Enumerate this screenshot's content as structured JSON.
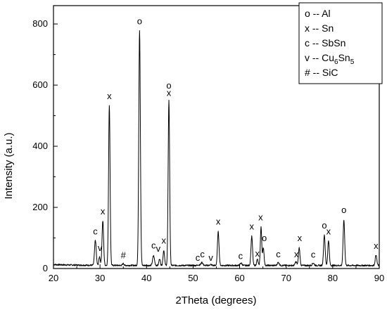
{
  "chart_data": {
    "type": "line",
    "xlabel": "2Theta (degrees)",
    "ylabel": "Intensity (a.u.)",
    "xlim": [
      20,
      90
    ],
    "ylim": [
      0,
      860
    ],
    "x_ticks": [
      20,
      30,
      40,
      50,
      60,
      70,
      80,
      90
    ],
    "y_ticks": [
      0,
      200,
      400,
      600,
      800
    ],
    "x_tick_labels": [
      "20",
      "30",
      "40",
      "50",
      "60",
      "70",
      "80",
      "90"
    ],
    "y_tick_labels": [
      "0",
      "200",
      "400",
      "600",
      "800"
    ],
    "grid": false,
    "legend_position": "top-right",
    "legend": [
      {
        "symbol": "o",
        "sep": " -- ",
        "name": "Al",
        "sub1": "",
        "mid": "",
        "sub2": ""
      },
      {
        "symbol": "x",
        "sep": " -- ",
        "name": "Sn",
        "sub1": "",
        "mid": "",
        "sub2": ""
      },
      {
        "symbol": "c",
        "sep": " -- ",
        "name": "SbSn",
        "sub1": "",
        "mid": "",
        "sub2": ""
      },
      {
        "symbol": "v",
        "sep": " -- ",
        "name": "Cu",
        "sub1": "6",
        "mid": "Sn",
        "sub2": "5"
      },
      {
        "symbol": "#",
        "sep": " -- ",
        "name": "SiC",
        "sub1": "",
        "mid": "",
        "sub2": ""
      }
    ],
    "baseline": 10,
    "peaks": [
      {
        "x": 29.0,
        "y": 92,
        "w": 0.18
      },
      {
        "x": 29.9,
        "y": 38,
        "w": 0.15
      },
      {
        "x": 30.6,
        "y": 155,
        "w": 0.17
      },
      {
        "x": 32.0,
        "y": 535,
        "w": 0.16
      },
      {
        "x": 35.0,
        "y": 16,
        "w": 0.15
      },
      {
        "x": 38.5,
        "y": 780,
        "w": 0.17
      },
      {
        "x": 41.5,
        "y": 42,
        "w": 0.2
      },
      {
        "x": 42.8,
        "y": 32,
        "w": 0.15
      },
      {
        "x": 43.7,
        "y": 60,
        "w": 0.16
      },
      {
        "x": 44.8,
        "y": 550,
        "w": 0.16
      },
      {
        "x": 51.2,
        "y": 12,
        "w": 0.2
      },
      {
        "x": 51.9,
        "y": 20,
        "w": 0.2
      },
      {
        "x": 53.8,
        "y": 13,
        "w": 0.2
      },
      {
        "x": 55.4,
        "y": 120,
        "w": 0.17
      },
      {
        "x": 60.3,
        "y": 18,
        "w": 0.2
      },
      {
        "x": 62.6,
        "y": 105,
        "w": 0.17
      },
      {
        "x": 63.8,
        "y": 30,
        "w": 0.15
      },
      {
        "x": 64.6,
        "y": 135,
        "w": 0.15
      },
      {
        "x": 65.1,
        "y": 68,
        "w": 0.15
      },
      {
        "x": 68.3,
        "y": 20,
        "w": 0.2
      },
      {
        "x": 72.1,
        "y": 22,
        "w": 0.18
      },
      {
        "x": 72.8,
        "y": 68,
        "w": 0.16
      },
      {
        "x": 75.8,
        "y": 18,
        "w": 0.2
      },
      {
        "x": 78.2,
        "y": 110,
        "w": 0.17
      },
      {
        "x": 79.1,
        "y": 92,
        "w": 0.16
      },
      {
        "x": 82.4,
        "y": 158,
        "w": 0.17
      },
      {
        "x": 89.3,
        "y": 45,
        "w": 0.17
      }
    ],
    "annotations": [
      {
        "text": "c",
        "x": 29.0,
        "y": 102
      },
      {
        "text": "v",
        "x": 30.0,
        "y": 48
      },
      {
        "text": "x",
        "x": 30.6,
        "y": 168
      },
      {
        "text": "x",
        "x": 32.0,
        "y": 545
      },
      {
        "text": "#",
        "x": 35.0,
        "y": 24
      },
      {
        "text": "o",
        "x": 38.5,
        "y": 790
      },
      {
        "text": "c",
        "x": 41.5,
        "y": 56
      },
      {
        "text": "v",
        "x": 42.5,
        "y": 46
      },
      {
        "text": "x",
        "x": 43.7,
        "y": 72
      },
      {
        "text": "o",
        "x": 44.8,
        "y": 580
      },
      {
        "text": "x",
        "x": 44.8,
        "y": 555
      },
      {
        "text": "c",
        "x": 51.0,
        "y": 16
      },
      {
        "text": "c",
        "x": 52.0,
        "y": 28
      },
      {
        "text": "v",
        "x": 53.8,
        "y": 16
      },
      {
        "text": "x",
        "x": 55.4,
        "y": 134
      },
      {
        "text": "c",
        "x": 60.2,
        "y": 22
      },
      {
        "text": "x",
        "x": 62.6,
        "y": 118
      },
      {
        "text": "x",
        "x": 63.8,
        "y": 30
      },
      {
        "text": "x",
        "x": 64.5,
        "y": 148
      },
      {
        "text": "o",
        "x": 65.3,
        "y": 80
      },
      {
        "text": "c",
        "x": 68.3,
        "y": 28
      },
      {
        "text": "x",
        "x": 72.2,
        "y": 28
      },
      {
        "text": "x",
        "x": 72.9,
        "y": 80
      },
      {
        "text": "c",
        "x": 75.8,
        "y": 26
      },
      {
        "text": "o",
        "x": 78.2,
        "y": 122
      },
      {
        "text": "x",
        "x": 79.1,
        "y": 102
      },
      {
        "text": "o",
        "x": 82.4,
        "y": 172
      },
      {
        "text": "x",
        "x": 89.3,
        "y": 55
      }
    ]
  }
}
